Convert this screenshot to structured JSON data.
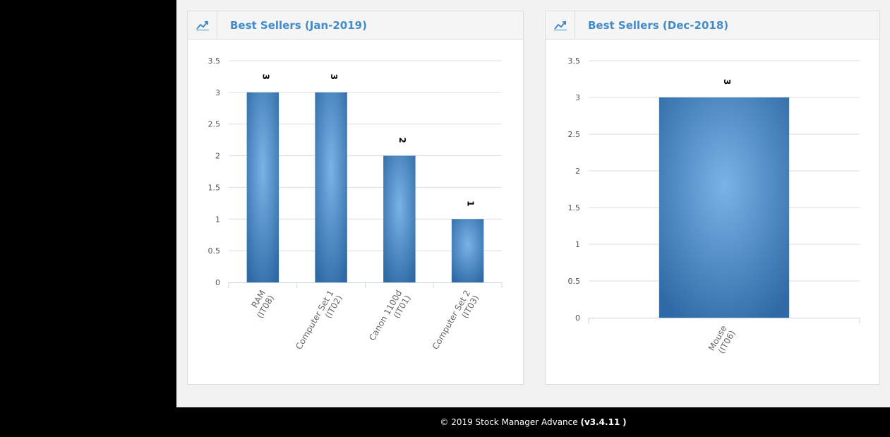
{
  "footer": {
    "copyright": "© 2019 Stock Manager Advance",
    "version_prefix": "(",
    "version": "v3.4.11",
    "version_suffix": ")"
  },
  "colors": {
    "title": "#428bca",
    "bar_center": "#7ab3e6",
    "bar_edge": "#2f6aa6",
    "grid": "#dddddd",
    "axis": "#c9d4e0"
  },
  "charts": [
    {
      "title": "Best Sellers (Jan-2019)",
      "icon": "line-chart-icon"
    },
    {
      "title": "Best Sellers (Dec-2018)",
      "icon": "line-chart-icon"
    }
  ],
  "chart_data": [
    {
      "type": "bar",
      "title": "Best Sellers (Jan-2019)",
      "categories": [
        [
          "RAM",
          "(IT08)"
        ],
        [
          "Computer Set 1",
          "(IT02)"
        ],
        [
          "Canon 1100d",
          "(IT01)"
        ],
        [
          "Computer Set 2",
          "(IT03)"
        ]
      ],
      "values": [
        3,
        3,
        2,
        1
      ],
      "data_labels": [
        "3",
        "3",
        "2",
        "1"
      ],
      "yticks": [
        "0",
        "0.5",
        "1",
        "1.5",
        "2",
        "2.5",
        "3",
        "3.5"
      ],
      "ylim": [
        0,
        3.5
      ],
      "grid": true,
      "legend": "none"
    },
    {
      "type": "bar",
      "title": "Best Sellers (Dec-2018)",
      "categories": [
        [
          "Mouse",
          "(IT06)"
        ]
      ],
      "values": [
        3
      ],
      "data_labels": [
        "3"
      ],
      "yticks": [
        "0",
        "0.5",
        "1",
        "1.5",
        "2",
        "2.5",
        "3",
        "3.5"
      ],
      "ylim": [
        0,
        3.5
      ],
      "grid": true,
      "legend": "none"
    }
  ]
}
